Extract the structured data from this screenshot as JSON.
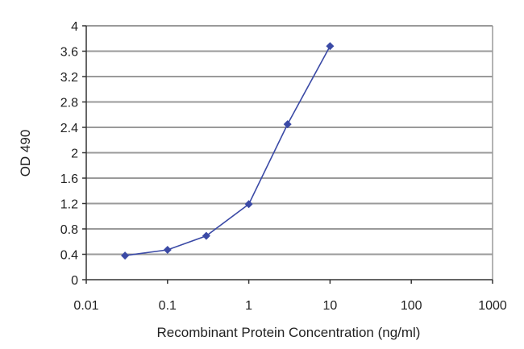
{
  "chart_data": {
    "type": "line",
    "xlabel": "Recombinant Protein Concentration (ng/ml)",
    "ylabel": "OD 490",
    "x_scale": "log",
    "xlim": [
      0.01,
      1000
    ],
    "ylim": [
      0,
      4
    ],
    "grid": "horizontal",
    "x_ticks": [
      0.01,
      0.1,
      1,
      10,
      100,
      1000
    ],
    "x_tick_labels": [
      "0.01",
      "0.1",
      "1",
      "10",
      "100",
      "1000"
    ],
    "y_ticks": [
      0,
      0.4,
      0.8,
      1.2,
      1.6,
      2,
      2.4,
      2.8,
      3.2,
      3.6,
      4
    ],
    "y_tick_labels": [
      "0",
      "0.4",
      "0.8",
      "1.2",
      "1.6",
      "2",
      "2.4",
      "2.8",
      "3.2",
      "3.6",
      "4"
    ],
    "series": [
      {
        "color": "#3b4aa6",
        "x": [
          0.03,
          0.1,
          0.3,
          1,
          3,
          10
        ],
        "values": [
          0.38,
          0.47,
          0.69,
          1.19,
          2.45,
          3.68
        ]
      }
    ]
  },
  "colors": {
    "grid": "#9a9a9a",
    "axis": "#333333",
    "frame": "#9a9a9a"
  }
}
